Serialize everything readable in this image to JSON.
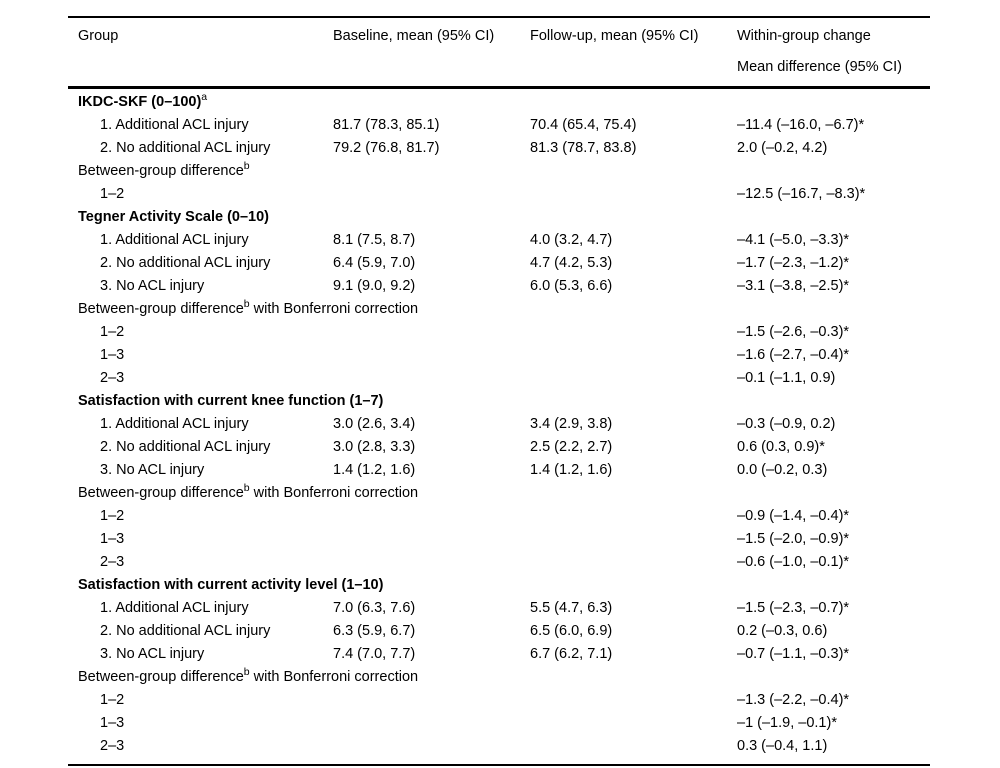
{
  "colors": {
    "text": "#000000",
    "background": "#ffffff",
    "rule": "#000000"
  },
  "table": {
    "headers": {
      "group": "Group",
      "baseline": "Baseline, mean (95% CI)",
      "followup": "Follow-up, mean (95% CI)",
      "change_line1": "Within-group change",
      "change_line2": "Mean difference (95% CI)"
    },
    "rows": [
      {
        "type": "section",
        "label": "IKDC-SKF (0–100)",
        "sup": "a"
      },
      {
        "type": "data",
        "label": "1. Additional ACL injury",
        "baseline": "81.7 (78.3, 85.1)",
        "followup": "70.4 (65.4, 75.4)",
        "change": "–11.4 (–16.0, –6.7)*"
      },
      {
        "type": "data",
        "label": "2. No additional ACL injury",
        "baseline": "79.2 (76.8, 81.7)",
        "followup": "81.3 (78.7, 83.8)",
        "change": "2.0 (–0.2, 4.2)"
      },
      {
        "type": "group-label",
        "label": "Between-group difference",
        "sup": "b"
      },
      {
        "type": "diff",
        "label": "1–2",
        "change": "–12.5 (–16.7, –8.3)*"
      },
      {
        "type": "section",
        "label": "Tegner Activity Scale (0–10)"
      },
      {
        "type": "data",
        "label": "1. Additional ACL injury",
        "baseline": "8.1 (7.5, 8.7)",
        "followup": "4.0 (3.2, 4.7)",
        "change": "–4.1 (–5.0, –3.3)*"
      },
      {
        "type": "data",
        "label": "2. No additional ACL injury",
        "baseline": "6.4 (5.9, 7.0)",
        "followup": "4.7 (4.2, 5.3)",
        "change": "–1.7 (–2.3, –1.2)*"
      },
      {
        "type": "data",
        "label": "3. No ACL injury",
        "baseline": "9.1 (9.0, 9.2)",
        "followup": "6.0 (5.3, 6.6)",
        "change": "–3.1 (–3.8, –2.5)*"
      },
      {
        "type": "group-label",
        "label": "Between-group difference",
        "sup": "b",
        "suffix": " with Bonferroni correction"
      },
      {
        "type": "diff",
        "label": "1–2",
        "change": "–1.5 (–2.6, –0.3)*"
      },
      {
        "type": "diff",
        "label": "1–3",
        "change": "–1.6 (–2.7, –0.4)*"
      },
      {
        "type": "diff",
        "label": "2–3",
        "change": "–0.1 (–1.1, 0.9)"
      },
      {
        "type": "section",
        "label": "Satisfaction with current knee function (1–7)"
      },
      {
        "type": "data",
        "label": "1. Additional ACL injury",
        "baseline": "3.0 (2.6, 3.4)",
        "followup": "3.4 (2.9, 3.8)",
        "change": "–0.3 (–0.9, 0.2)"
      },
      {
        "type": "data",
        "label": "2. No additional ACL injury",
        "baseline": "3.0 (2.8, 3.3)",
        "followup": "2.5 (2.2, 2.7)",
        "change": "0.6 (0.3, 0.9)*"
      },
      {
        "type": "data",
        "label": "3. No ACL injury",
        "baseline": "1.4 (1.2, 1.6)",
        "followup": "1.4 (1.2, 1.6)",
        "change": "0.0 (–0.2, 0.3)"
      },
      {
        "type": "group-label",
        "label": "Between-group difference",
        "sup": "b",
        "suffix": " with Bonferroni correction"
      },
      {
        "type": "diff",
        "label": "1–2",
        "change": "–0.9 (–1.4, –0.4)*"
      },
      {
        "type": "diff",
        "label": "1–3",
        "change": "–1.5 (–2.0, –0.9)*"
      },
      {
        "type": "diff",
        "label": "2–3",
        "change": "–0.6 (–1.0, –0.1)*"
      },
      {
        "type": "section",
        "label": "Satisfaction with current activity level (1–10)"
      },
      {
        "type": "data",
        "label": "1. Additional ACL injury",
        "baseline": "7.0 (6.3, 7.6)",
        "followup": "5.5 (4.7, 6.3)",
        "change": "–1.5 (–2.3, –0.7)*"
      },
      {
        "type": "data",
        "label": "2. No additional ACL injury",
        "baseline": "6.3 (5.9, 6.7)",
        "followup": "6.5 (6.0, 6.9)",
        "change": "0.2 (–0.3, 0.6)"
      },
      {
        "type": "data",
        "label": "3. No ACL injury",
        "baseline": "7.4 (7.0, 7.7)",
        "followup": "6.7 (6.2, 7.1)",
        "change": "–0.7 (–1.1, –0.3)*"
      },
      {
        "type": "group-label",
        "label": "Between-group difference",
        "sup": "b",
        "suffix": " with Bonferroni correction"
      },
      {
        "type": "diff",
        "label": "1–2",
        "change": "–1.3 (–2.2, –0.4)*"
      },
      {
        "type": "diff",
        "label": "1–3",
        "change": "–1 (–1.9, –0.1)*"
      },
      {
        "type": "diff",
        "label": "2–3",
        "change": "0.3 (–0.4, 1.1)"
      }
    ]
  }
}
